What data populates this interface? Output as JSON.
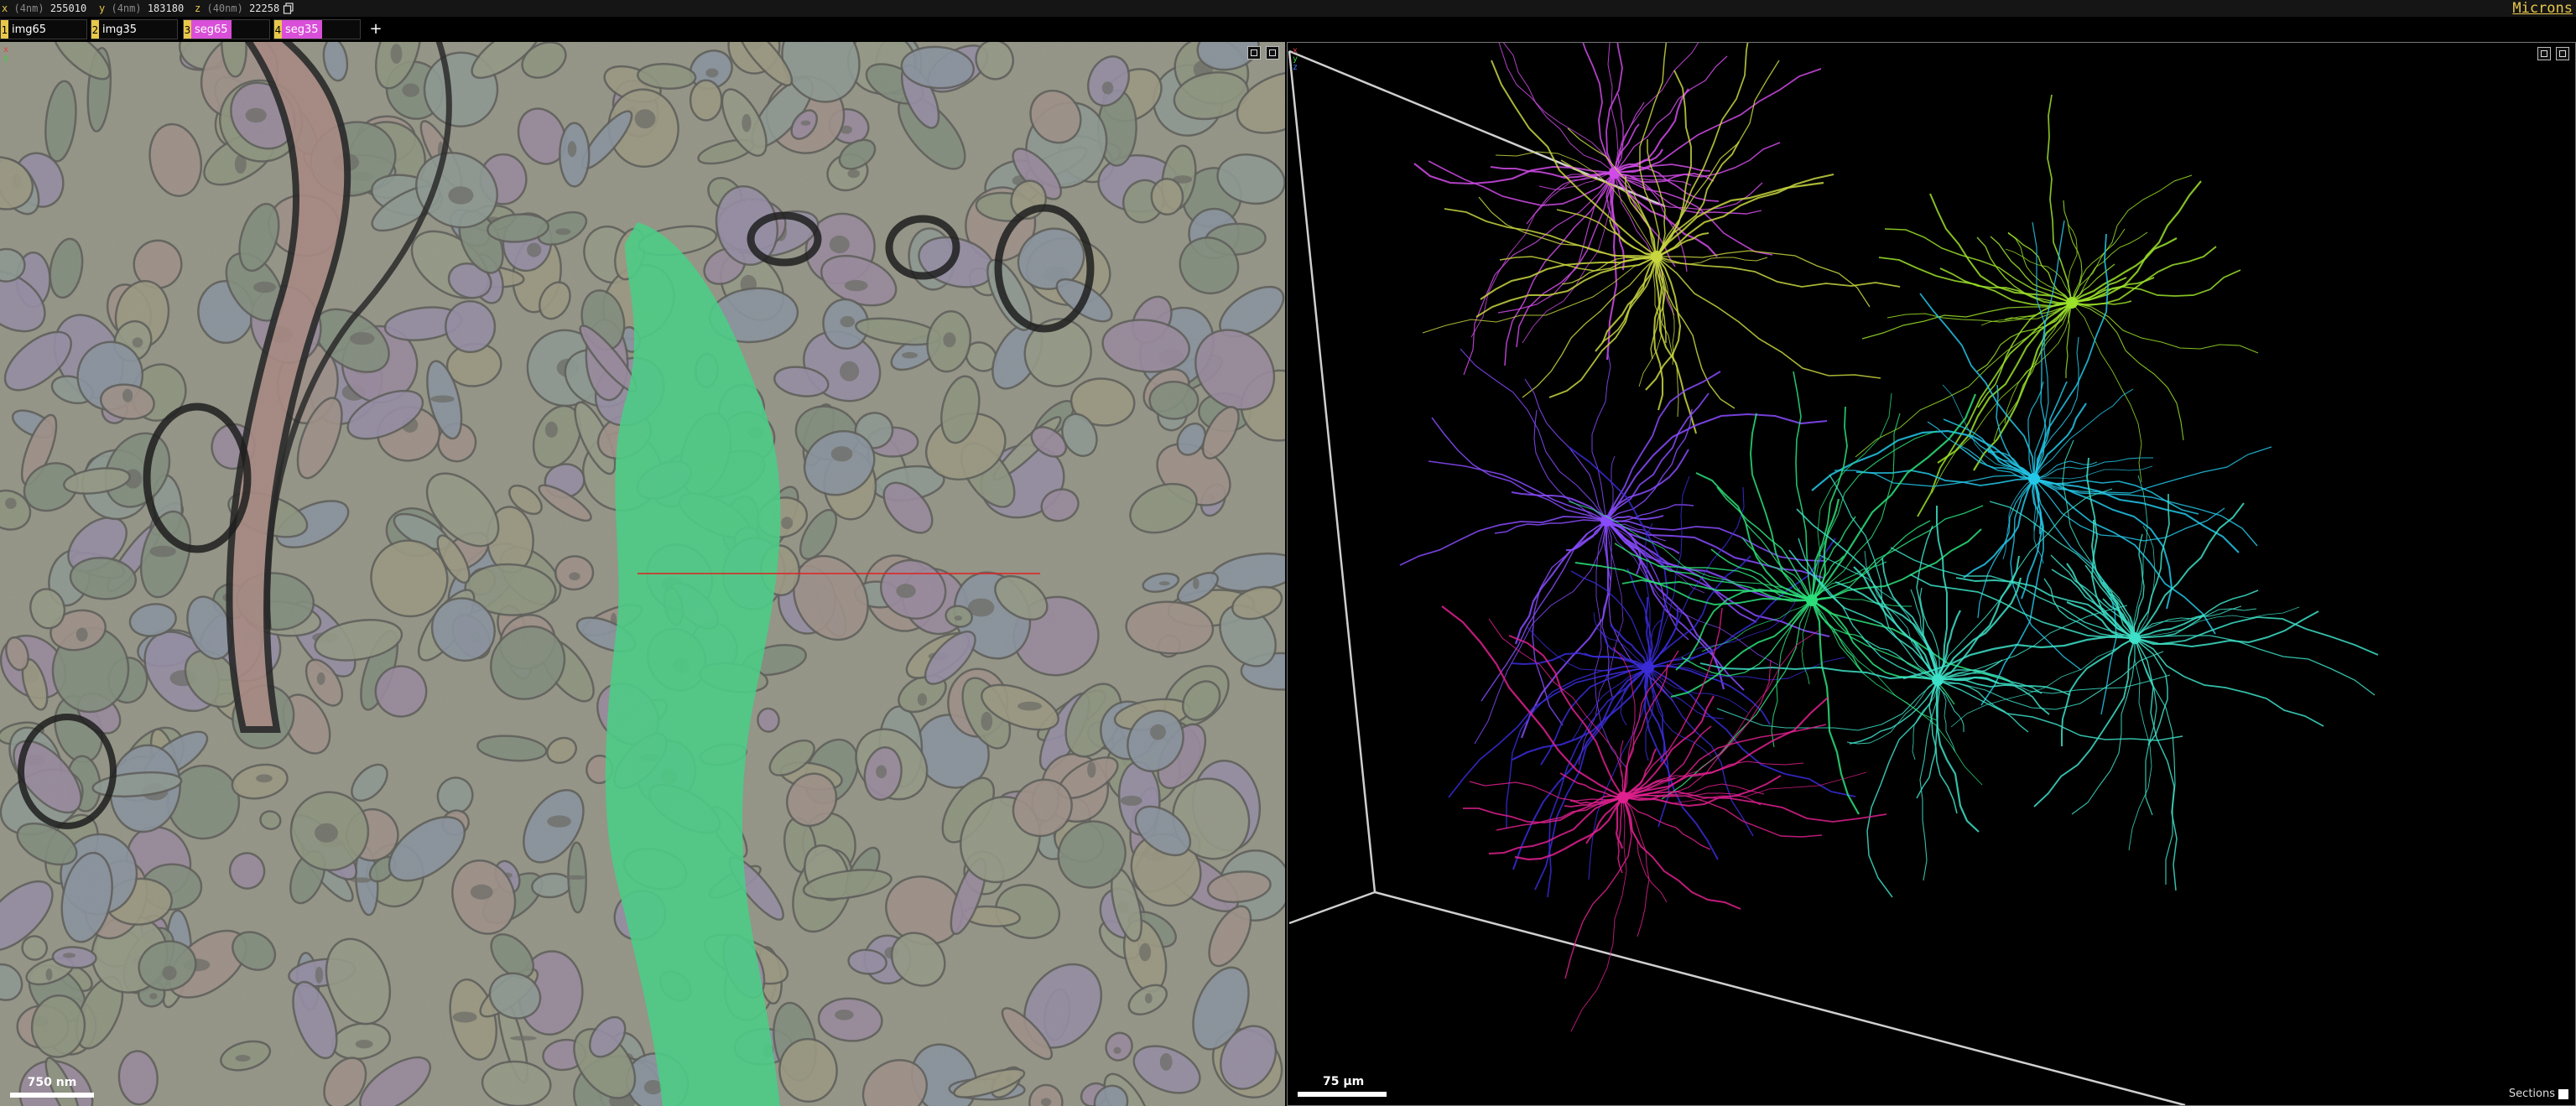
{
  "app": {
    "brand": "Microns"
  },
  "coords": [
    {
      "axis": "x",
      "unit": "(4nm)",
      "value": "255010"
    },
    {
      "axis": "y",
      "unit": "(4nm)",
      "value": "183180"
    },
    {
      "axis": "z",
      "unit": "(40nm)",
      "value": "22258"
    }
  ],
  "layers": [
    {
      "num": "1",
      "name": "img65",
      "color": "#e8c84a"
    },
    {
      "num": "2",
      "name": "img35",
      "color": "#e8c84a"
    },
    {
      "num": "3",
      "name": "seg65",
      "color": "#d94fd9"
    },
    {
      "num": "4",
      "name": "seg35",
      "color": "#d94fd9"
    }
  ],
  "add_layer_label": "+",
  "em_view": {
    "axes": [
      "x",
      "y"
    ],
    "scale_label": "750 nm",
    "highlight_color": "#3ddc84"
  },
  "mesh_view": {
    "axes": [
      "x",
      "y",
      "z"
    ],
    "scale_label": "75 µm",
    "sections_label": "Sections",
    "neuron_colors": [
      "#d04be8",
      "#c8d640",
      "#9be22a",
      "#23c7e8",
      "#8a4bff",
      "#3a2bd9",
      "#2be07a",
      "#3de0c8",
      "#e0208f",
      "#e8e8e8"
    ]
  },
  "icons": {
    "copy": "copy-icon",
    "layout": "layout-icon",
    "maximize": "maximize-icon"
  }
}
